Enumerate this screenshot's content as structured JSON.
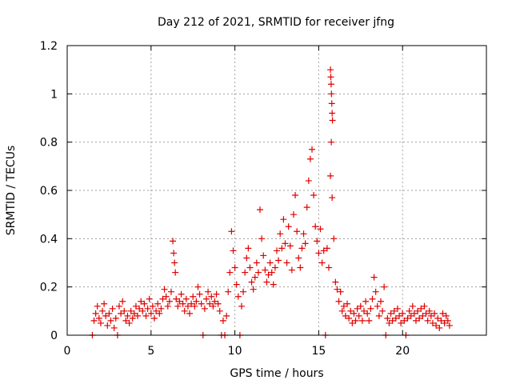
{
  "chart_data": {
    "type": "scatter",
    "title": "Day 212 of 2021, SRMTID for receiver jfng",
    "xlabel": "GPS time / hours",
    "ylabel": "SRMTID / TECUs",
    "xlim": [
      0,
      25
    ],
    "ylim": [
      0,
      1.2
    ],
    "xticks": [
      0,
      5,
      10,
      15,
      20
    ],
    "xtick_labels": [
      "0",
      "5",
      "10",
      "15",
      "20"
    ],
    "yticks": [
      0,
      0.2,
      0.4,
      0.6,
      0.8,
      1,
      1.2
    ],
    "ytick_labels": [
      "0",
      "0.2",
      "0.4",
      "0.6",
      "0.8",
      "1",
      "1.2"
    ],
    "grid": true,
    "marker": "+",
    "color": "#e00000",
    "series": [
      {
        "name": "SRMTID",
        "points": [
          [
            1.5,
            0.0
          ],
          [
            1.6,
            0.06
          ],
          [
            1.7,
            0.09
          ],
          [
            1.8,
            0.12
          ],
          [
            1.9,
            0.07
          ],
          [
            2.0,
            0.05
          ],
          [
            2.1,
            0.1
          ],
          [
            2.2,
            0.13
          ],
          [
            2.3,
            0.08
          ],
          [
            2.4,
            0.04
          ],
          [
            2.5,
            0.09
          ],
          [
            2.6,
            0.06
          ],
          [
            2.7,
            0.11
          ],
          [
            2.8,
            0.03
          ],
          [
            2.9,
            0.07
          ],
          [
            3.0,
            0.0
          ],
          [
            3.1,
            0.12
          ],
          [
            3.2,
            0.09
          ],
          [
            3.3,
            0.14
          ],
          [
            3.4,
            0.1
          ],
          [
            3.5,
            0.06
          ],
          [
            3.6,
            0.08
          ],
          [
            3.7,
            0.05
          ],
          [
            3.8,
            0.1
          ],
          [
            3.9,
            0.07
          ],
          [
            4.0,
            0.09
          ],
          [
            4.1,
            0.12
          ],
          [
            4.2,
            0.08
          ],
          [
            4.3,
            0.11
          ],
          [
            4.4,
            0.14
          ],
          [
            4.5,
            0.1
          ],
          [
            4.6,
            0.13
          ],
          [
            4.7,
            0.08
          ],
          [
            4.8,
            0.11
          ],
          [
            4.9,
            0.15
          ],
          [
            5.0,
            0.09
          ],
          [
            5.1,
            0.12
          ],
          [
            5.2,
            0.07
          ],
          [
            5.3,
            0.1
          ],
          [
            5.4,
            0.13
          ],
          [
            5.5,
            0.09
          ],
          [
            5.6,
            0.11
          ],
          [
            5.7,
            0.15
          ],
          [
            5.8,
            0.19
          ],
          [
            5.9,
            0.16
          ],
          [
            6.0,
            0.12
          ],
          [
            6.1,
            0.14
          ],
          [
            6.2,
            0.18
          ],
          [
            6.3,
            0.39
          ],
          [
            6.35,
            0.34
          ],
          [
            6.4,
            0.3
          ],
          [
            6.45,
            0.26
          ],
          [
            6.5,
            0.15
          ],
          [
            6.6,
            0.12
          ],
          [
            6.7,
            0.14
          ],
          [
            6.8,
            0.17
          ],
          [
            6.9,
            0.13
          ],
          [
            7.0,
            0.1
          ],
          [
            7.1,
            0.15
          ],
          [
            7.2,
            0.12
          ],
          [
            7.3,
            0.09
          ],
          [
            7.4,
            0.13
          ],
          [
            7.5,
            0.16
          ],
          [
            7.6,
            0.12
          ],
          [
            7.7,
            0.14
          ],
          [
            7.8,
            0.2
          ],
          [
            7.9,
            0.17
          ],
          [
            8.0,
            0.13
          ],
          [
            8.1,
            0.0
          ],
          [
            8.2,
            0.11
          ],
          [
            8.3,
            0.15
          ],
          [
            8.4,
            0.18
          ],
          [
            8.5,
            0.13
          ],
          [
            8.6,
            0.16
          ],
          [
            8.7,
            0.12
          ],
          [
            8.8,
            0.14
          ],
          [
            8.9,
            0.17
          ],
          [
            9.0,
            0.13
          ],
          [
            9.1,
            0.1
          ],
          [
            9.2,
            0.0
          ],
          [
            9.3,
            0.06
          ],
          [
            9.4,
            0.0
          ],
          [
            9.5,
            0.08
          ],
          [
            9.6,
            0.18
          ],
          [
            9.7,
            0.26
          ],
          [
            9.8,
            0.43
          ],
          [
            9.9,
            0.35
          ],
          [
            10.0,
            0.28
          ],
          [
            10.1,
            0.21
          ],
          [
            10.2,
            0.16
          ],
          [
            10.3,
            0.0
          ],
          [
            10.4,
            0.12
          ],
          [
            10.5,
            0.18
          ],
          [
            10.6,
            0.26
          ],
          [
            10.7,
            0.32
          ],
          [
            10.8,
            0.36
          ],
          [
            10.9,
            0.28
          ],
          [
            11.0,
            0.22
          ],
          [
            11.1,
            0.19
          ],
          [
            11.2,
            0.24
          ],
          [
            11.3,
            0.3
          ],
          [
            11.4,
            0.26
          ],
          [
            11.5,
            0.52
          ],
          [
            11.6,
            0.4
          ],
          [
            11.7,
            0.33
          ],
          [
            11.8,
            0.27
          ],
          [
            11.9,
            0.22
          ],
          [
            12.0,
            0.25
          ],
          [
            12.1,
            0.3
          ],
          [
            12.2,
            0.26
          ],
          [
            12.3,
            0.21
          ],
          [
            12.4,
            0.28
          ],
          [
            12.5,
            0.35
          ],
          [
            12.6,
            0.31
          ],
          [
            12.7,
            0.42
          ],
          [
            12.8,
            0.36
          ],
          [
            12.9,
            0.48
          ],
          [
            13.0,
            0.38
          ],
          [
            13.1,
            0.3
          ],
          [
            13.2,
            0.45
          ],
          [
            13.3,
            0.37
          ],
          [
            13.4,
            0.27
          ],
          [
            13.5,
            0.5
          ],
          [
            13.6,
            0.58
          ],
          [
            13.7,
            0.43
          ],
          [
            13.8,
            0.32
          ],
          [
            13.9,
            0.28
          ],
          [
            14.0,
            0.36
          ],
          [
            14.1,
            0.42
          ],
          [
            14.2,
            0.38
          ],
          [
            14.3,
            0.53
          ],
          [
            14.4,
            0.64
          ],
          [
            14.5,
            0.73
          ],
          [
            14.6,
            0.77
          ],
          [
            14.7,
            0.58
          ],
          [
            14.8,
            0.45
          ],
          [
            14.9,
            0.39
          ],
          [
            15.0,
            0.34
          ],
          [
            15.1,
            0.44
          ],
          [
            15.2,
            0.3
          ],
          [
            15.3,
            0.35
          ],
          [
            15.4,
            0.0
          ],
          [
            15.5,
            0.36
          ],
          [
            15.6,
            0.28
          ],
          [
            15.7,
            1.1
          ],
          [
            15.72,
            1.07
          ],
          [
            15.74,
            1.04
          ],
          [
            15.76,
            1.0
          ],
          [
            15.78,
            0.96
          ],
          [
            15.8,
            0.92
          ],
          [
            15.82,
            0.89
          ],
          [
            15.75,
            0.8
          ],
          [
            15.7,
            0.66
          ],
          [
            15.8,
            0.57
          ],
          [
            15.9,
            0.4
          ],
          [
            16.0,
            0.22
          ],
          [
            16.1,
            0.19
          ],
          [
            16.2,
            0.14
          ],
          [
            16.3,
            0.18
          ],
          [
            16.4,
            0.1
          ],
          [
            16.5,
            0.12
          ],
          [
            16.6,
            0.08
          ],
          [
            16.7,
            0.13
          ],
          [
            16.8,
            0.07
          ],
          [
            16.9,
            0.1
          ],
          [
            17.0,
            0.05
          ],
          [
            17.1,
            0.09
          ],
          [
            17.2,
            0.06
          ],
          [
            17.3,
            0.11
          ],
          [
            17.4,
            0.08
          ],
          [
            17.5,
            0.12
          ],
          [
            17.6,
            0.06
          ],
          [
            17.7,
            0.1
          ],
          [
            17.8,
            0.14
          ],
          [
            17.9,
            0.09
          ],
          [
            18.0,
            0.06
          ],
          [
            18.1,
            0.11
          ],
          [
            18.2,
            0.15
          ],
          [
            18.3,
            0.24
          ],
          [
            18.4,
            0.18
          ],
          [
            18.5,
            0.12
          ],
          [
            18.6,
            0.08
          ],
          [
            18.7,
            0.14
          ],
          [
            18.8,
            0.1
          ],
          [
            18.9,
            0.2
          ],
          [
            19.0,
            0.0
          ],
          [
            19.1,
            0.07
          ],
          [
            19.2,
            0.05
          ],
          [
            19.3,
            0.09
          ],
          [
            19.4,
            0.06
          ],
          [
            19.5,
            0.1
          ],
          [
            19.6,
            0.07
          ],
          [
            19.7,
            0.11
          ],
          [
            19.8,
            0.08
          ],
          [
            19.9,
            0.05
          ],
          [
            20.0,
            0.09
          ],
          [
            20.1,
            0.06
          ],
          [
            20.2,
            0.0
          ],
          [
            20.3,
            0.07
          ],
          [
            20.4,
            0.1
          ],
          [
            20.5,
            0.08
          ],
          [
            20.6,
            0.12
          ],
          [
            20.7,
            0.09
          ],
          [
            20.8,
            0.06
          ],
          [
            20.9,
            0.1
          ],
          [
            21.0,
            0.07
          ],
          [
            21.1,
            0.11
          ],
          [
            21.2,
            0.08
          ],
          [
            21.3,
            0.12
          ],
          [
            21.4,
            0.09
          ],
          [
            21.5,
            0.06
          ],
          [
            21.6,
            0.1
          ],
          [
            21.7,
            0.08
          ],
          [
            21.8,
            0.05
          ],
          [
            21.9,
            0.09
          ],
          [
            22.0,
            0.04
          ],
          [
            22.1,
            0.07
          ],
          [
            22.2,
            0.03
          ],
          [
            22.3,
            0.06
          ],
          [
            22.4,
            0.09
          ],
          [
            22.5,
            0.05
          ],
          [
            22.6,
            0.08
          ],
          [
            22.7,
            0.06
          ],
          [
            22.8,
            0.04
          ]
        ]
      }
    ]
  }
}
